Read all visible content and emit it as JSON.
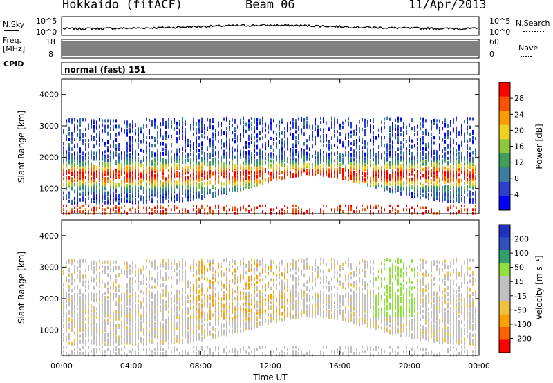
{
  "header": {
    "title": "Hokkaido (fitACF)",
    "beam": "Beam 06",
    "date": "11/Apr/2013"
  },
  "panel_sky": {
    "label": "N.Sky",
    "right_label": "N.Search",
    "ticks_left": [
      "10^5",
      "10^0"
    ],
    "ticks_right": [
      "10^5",
      "10^0"
    ]
  },
  "panel_freq": {
    "label_top": "Freq.",
    "label_unit": "[MHz]",
    "right_label": "Nave",
    "ticks_left": [
      "18",
      "8"
    ],
    "ticks_right": [
      "60",
      "0"
    ]
  },
  "cpid": {
    "label": "CPID",
    "value": "normal (fast) 151"
  },
  "colors": {
    "power_scale": [
      "#0000ff",
      "#2e3fd0",
      "#3c7ea0",
      "#3fa05a",
      "#8fc83c",
      "#f0d020",
      "#ff9a00",
      "#ff5000",
      "#ff0000"
    ],
    "velocity_scale": [
      "#ff0000",
      "#ff6000",
      "#ffa000",
      "#f0c040",
      "#c0c0c0",
      "#c0c0c0",
      "#90e040",
      "#30a070",
      "#3050c0",
      "#2030c0"
    ]
  },
  "chart_data": [
    {
      "type": "heatmap",
      "title": "",
      "xlabel": "",
      "ylabel": "Slant Range [km]",
      "xlim": [
        "00:00",
        "24:00"
      ],
      "ylim": [
        200,
        4500
      ],
      "y_ticks": [
        "4000",
        "3000",
        "2000",
        "1000"
      ],
      "colorbar_label": "Power [dB]",
      "colorbar_ticks": [
        "28",
        "24",
        "20",
        "16",
        "12",
        "8",
        "4"
      ],
      "colorbar_range": [
        0,
        32
      ]
    },
    {
      "type": "heatmap",
      "title": "",
      "xlabel": "Time UT",
      "ylabel": "Slant Range [km]",
      "xlim": [
        "00:00",
        "24:00"
      ],
      "ylim": [
        200,
        4500
      ],
      "x_ticks": [
        "00:00",
        "04:00",
        "08:00",
        "12:00",
        "16:00",
        "20:00",
        "00:00"
      ],
      "y_ticks": [
        "4000",
        "3000",
        "2000",
        "1000"
      ],
      "colorbar_label": "Velocity [m s⁻¹]",
      "colorbar_ticks": [
        "200",
        "100",
        "50",
        "15",
        "-15",
        "-50",
        "-100",
        "-200"
      ]
    }
  ]
}
